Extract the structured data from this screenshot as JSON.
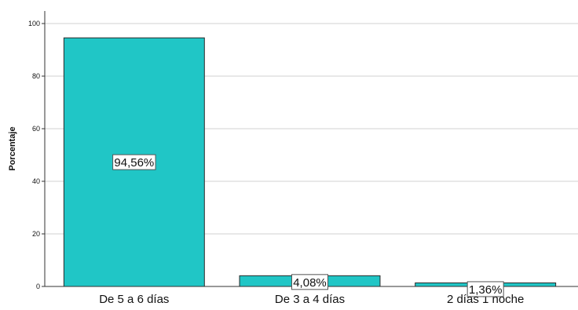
{
  "chart_data": {
    "type": "bar",
    "categories": [
      "De 5 a 6 días",
      "De 3 a 4 días",
      "2 días 1 noche"
    ],
    "values": [
      94.56,
      4.08,
      1.36
    ],
    "data_labels": [
      "94,56%",
      "4,08%",
      "1,36%"
    ],
    "title": "",
    "xlabel": "",
    "ylabel": "Porcentaje",
    "ylim": [
      0,
      100
    ],
    "y_ticks": [
      "0",
      "20",
      "40",
      "60",
      "80",
      "100"
    ],
    "grid": "horizontal",
    "legend": "none",
    "bar_color": "#20c6c6",
    "bar_edge_color": "#2a2a2a",
    "grid_color": "#d0d0d0"
  }
}
